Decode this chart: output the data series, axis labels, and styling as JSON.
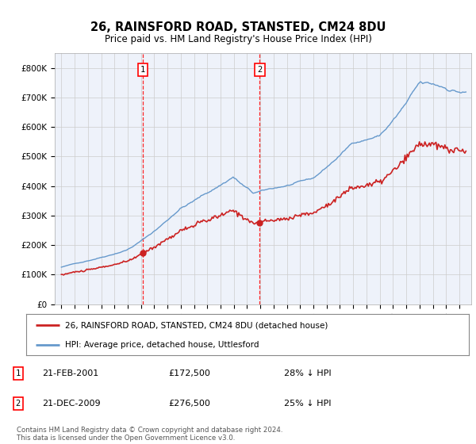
{
  "title": "26, RAINSFORD ROAD, STANSTED, CM24 8DU",
  "subtitle": "Price paid vs. HM Land Registry's House Price Index (HPI)",
  "ylim": [
    0,
    850000
  ],
  "yticks": [
    0,
    100000,
    200000,
    300000,
    400000,
    500000,
    600000,
    700000,
    800000
  ],
  "ytick_labels": [
    "£0",
    "£100K",
    "£200K",
    "£300K",
    "£400K",
    "£500K",
    "£600K",
    "£700K",
    "£800K"
  ],
  "hpi_color": "#6699cc",
  "price_color": "#cc2222",
  "marker1_date": 2001.12,
  "marker2_date": 2009.96,
  "marker1_price": 172500,
  "marker2_price": 276500,
  "legend_line1": "26, RAINSFORD ROAD, STANSTED, CM24 8DU (detached house)",
  "legend_line2": "HPI: Average price, detached house, Uttlesford",
  "footnote": "Contains HM Land Registry data © Crown copyright and database right 2024.\nThis data is licensed under the Open Government Licence v3.0.",
  "plot_bg": "#eef2fa",
  "grid_color": "#cccccc"
}
